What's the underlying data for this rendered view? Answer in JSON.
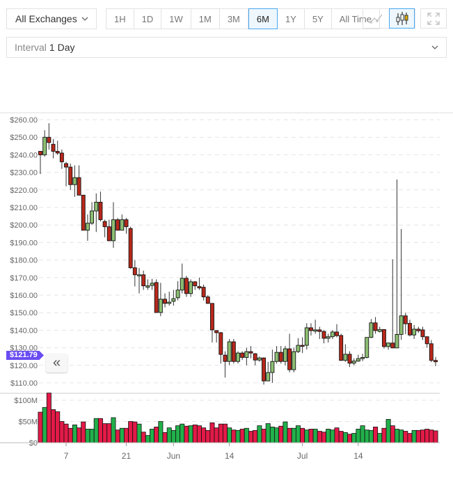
{
  "toolbar": {
    "exchange": "All Exchanges",
    "ranges": [
      "1H",
      "1D",
      "1W",
      "1M",
      "3M",
      "6M",
      "1Y",
      "5Y",
      "All Time"
    ],
    "active_range": "6M",
    "chart_types": [
      "line-chart-icon",
      "candlestick-icon"
    ],
    "active_chart_type": "candlestick-icon",
    "fullscreen": "expand-icon"
  },
  "interval": {
    "label": "Interval",
    "value": "1 Day"
  },
  "current_price": "$121.79",
  "collapse_icon": "double-chevron-left-icon",
  "colors": {
    "up": "#8dbf73",
    "down": "#b8281b",
    "vol_up": "#22b04b",
    "vol_down": "#e31a47",
    "badge": "#6a4cf2",
    "active": "#4aa8f0"
  },
  "chart_data": {
    "type": "candlestick",
    "price_ticks": [
      "$110.00",
      "$120.00",
      "$130.00",
      "$140.00",
      "$150.00",
      "$160.00",
      "$170.00",
      "$180.00",
      "$190.00",
      "$200.00",
      "$210.00",
      "$220.00",
      "$230.00",
      "$240.00",
      "$250.00",
      "$260.00"
    ],
    "price_range": [
      105,
      262
    ],
    "volume_ticks": [
      "$0",
      "$50M",
      "$100M"
    ],
    "volume_range_m": [
      0,
      117
    ],
    "x_ticks": [
      {
        "label": "7",
        "date": "May 7"
      },
      {
        "label": "21",
        "date": "May 21"
      },
      {
        "label": "Jun",
        "date": "Jun 1"
      },
      {
        "label": "14",
        "date": "Jun 14"
      },
      {
        "label": "Jul",
        "date": "Jul 1"
      },
      {
        "label": "14",
        "date": "Jul 14"
      }
    ],
    "grid": "horizontal dashed",
    "columns": [
      "date",
      "open",
      "high",
      "low",
      "close",
      "volume_m"
    ],
    "candles": [
      [
        "May 1",
        242,
        242,
        229,
        240,
        72
      ],
      [
        "May 2",
        240,
        254,
        239,
        250,
        83
      ],
      [
        "May 3",
        250,
        258,
        243,
        247,
        117
      ],
      [
        "May 4",
        246,
        249,
        238,
        242,
        78
      ],
      [
        "May 5",
        242,
        248,
        240,
        241,
        73
      ],
      [
        "May 6",
        241,
        243,
        232,
        236,
        50
      ],
      [
        "May 7",
        235,
        236,
        222,
        233,
        44
      ],
      [
        "May 8",
        233,
        235,
        220,
        223,
        34
      ],
      [
        "May 9",
        223,
        234,
        216,
        227,
        42
      ],
      [
        "May 10",
        227,
        234,
        217,
        217,
        35
      ],
      [
        "May 11",
        217,
        217,
        197,
        197,
        49
      ],
      [
        "May 12",
        197,
        206,
        191,
        201,
        32
      ],
      [
        "May 13",
        201,
        213,
        200,
        208,
        32
      ],
      [
        "May 14",
        208,
        218,
        196,
        213,
        57
      ],
      [
        "May 15",
        213,
        219,
        202,
        203,
        57
      ],
      [
        "May 16",
        202,
        203,
        193,
        199,
        45
      ],
      [
        "May 17",
        199,
        203,
        191,
        191,
        45
      ],
      [
        "May 18",
        191,
        213,
        187,
        203,
        59
      ],
      [
        "May 19",
        203,
        204,
        197,
        197,
        30
      ],
      [
        "May 20",
        197,
        206,
        197,
        203,
        34
      ],
      [
        "May 21",
        203,
        204,
        195,
        199,
        34
      ],
      [
        "May 22",
        198,
        199,
        175,
        175.6,
        50
      ],
      [
        "May 23",
        175.6,
        180,
        165,
        171.6,
        49
      ],
      [
        "May 24",
        171,
        175.5,
        161,
        171.6,
        44
      ],
      [
        "May 25",
        171.6,
        174,
        163,
        165.3,
        25
      ],
      [
        "May 26",
        164.5,
        169,
        163,
        165.3,
        17
      ],
      [
        "May 27",
        165.5,
        169.3,
        163,
        166.8,
        32
      ],
      [
        "May 28",
        167.2,
        169,
        150,
        150.1,
        37
      ],
      [
        "May 29",
        150.1,
        167,
        148,
        157.7,
        50
      ],
      [
        "May 30",
        157.7,
        161,
        153,
        155.3,
        24
      ],
      [
        "May 31",
        155.3,
        162,
        154,
        156,
        35
      ],
      [
        "Jun 1",
        156.5,
        163,
        154,
        158,
        29
      ],
      [
        "Jun 2",
        158.5,
        168,
        157,
        162.9,
        40
      ],
      [
        "Jun 3",
        162.9,
        178,
        161,
        169.6,
        44
      ],
      [
        "Jun 4",
        169.6,
        171,
        159,
        160.9,
        39
      ],
      [
        "Jun 5",
        160.9,
        169,
        159,
        167.6,
        40
      ],
      [
        "Jun 6",
        167.6,
        168,
        163,
        165.3,
        42
      ],
      [
        "Jun 7",
        164.9,
        170,
        163,
        164.1,
        40
      ],
      [
        "Jun 8",
        164.5,
        166,
        157,
        159,
        35
      ],
      [
        "Jun 9",
        159,
        160,
        155,
        155.3,
        29
      ],
      [
        "Jun 10",
        155.3,
        155.3,
        133,
        140.2,
        47
      ],
      [
        "Jun 11",
        139.8,
        140,
        133,
        138.6,
        35
      ],
      [
        "Jun 12",
        138.6,
        139,
        121,
        126.2,
        44
      ],
      [
        "Jun 13",
        125.8,
        128,
        113,
        122.2,
        44
      ],
      [
        "Jun 14",
        122.2,
        135,
        120,
        133.4,
        35
      ],
      [
        "Jun 15",
        133.4,
        135,
        121,
        122.2,
        30
      ],
      [
        "Jun 16",
        122.2,
        128,
        121,
        127,
        29
      ],
      [
        "Jun 17",
        127,
        128,
        123,
        124.5,
        32
      ],
      [
        "Jun 18",
        124.5,
        130,
        120,
        127.8,
        34
      ],
      [
        "Jun 19",
        127.8,
        131,
        124,
        127,
        27
      ],
      [
        "Jun 20",
        126.6,
        127,
        120,
        123,
        29
      ],
      [
        "Jun 21",
        123,
        125,
        122,
        124.2,
        40
      ],
      [
        "Jun 22",
        124.2,
        124.5,
        109,
        111.1,
        32
      ],
      [
        "Jun 23",
        111.1,
        122,
        111,
        115.9,
        45
      ],
      [
        "Jun 24",
        115.9,
        129,
        110,
        122.2,
        37
      ],
      [
        "Jun 25",
        122.2,
        131,
        121,
        127.4,
        35
      ],
      [
        "Jun 26",
        127.4,
        131,
        121,
        122.2,
        39
      ],
      [
        "Jun 27",
        122.2,
        131,
        120,
        129.4,
        49
      ],
      [
        "Jun 28",
        129.4,
        138,
        116,
        117.5,
        34
      ],
      [
        "Jun 29",
        117.5,
        130,
        116,
        127.8,
        34
      ],
      [
        "Jun 30",
        127.8,
        135.5,
        127,
        131.4,
        40
      ],
      [
        "Jul 1",
        131.4,
        136,
        127,
        130.8,
        34
      ],
      [
        "Jul 2",
        131.4,
        144,
        129,
        141.4,
        30
      ],
      [
        "Jul 3",
        141.4,
        144,
        137,
        139.8,
        32
      ],
      [
        "Jul 4",
        139.5,
        146,
        138,
        140.2,
        32
      ],
      [
        "Jul 5",
        140.2,
        142,
        135,
        139.3,
        27
      ],
      [
        "Jul 6",
        139.3,
        140,
        132.5,
        135.4,
        25
      ],
      [
        "Jul 7",
        135.4,
        138,
        133,
        136.3,
        32
      ],
      [
        "Jul 8",
        136.3,
        140,
        135,
        139,
        30
      ],
      [
        "Jul 9",
        139,
        143.5,
        136,
        136.9,
        35
      ],
      [
        "Jul 10",
        137,
        138,
        122.5,
        122.8,
        27
      ],
      [
        "Jul 11",
        122.8,
        132,
        122,
        126.3,
        24
      ],
      [
        "Jul 12",
        126.3,
        128,
        119,
        121.2,
        20
      ],
      [
        "Jul 13",
        121.2,
        124,
        120,
        122.4,
        22
      ],
      [
        "Jul 14",
        122.4,
        126,
        122,
        123.8,
        32
      ],
      [
        "Jul 15",
        123.8,
        126.6,
        122.4,
        124.5,
        40
      ],
      [
        "Jul 16",
        124.5,
        136,
        124,
        135.9,
        30
      ],
      [
        "Jul 17",
        135.9,
        146.4,
        135.5,
        144.2,
        29
      ],
      [
        "Jul 18",
        144.2,
        147.5,
        138,
        139.8,
        37
      ],
      [
        "Jul 19",
        139.3,
        142,
        138.7,
        140.4,
        22
      ],
      [
        "Jul 20",
        140.4,
        140.4,
        129.6,
        130.7,
        34
      ],
      [
        "Jul 21",
        130.7,
        133,
        128.9,
        132.7,
        55
      ],
      [
        "Jul 22",
        132.7,
        180.4,
        129.9,
        129.9,
        40
      ],
      [
        "Jul 23",
        129.9,
        225.9,
        129.9,
        137.6,
        32
      ],
      [
        "Jul 24",
        137.6,
        197.7,
        134.5,
        148.2,
        30
      ],
      [
        "Jul 25",
        148.2,
        150,
        137.8,
        143.7,
        27
      ],
      [
        "Jul 26",
        143.9,
        146,
        136.5,
        137.3,
        22
      ],
      [
        "Jul 27",
        137.3,
        143,
        135,
        140.6,
        29
      ],
      [
        "Jul 28",
        140.6,
        142,
        138.5,
        139.7,
        29
      ],
      [
        "Jul 29",
        140.2,
        142,
        134.4,
        136.3,
        30
      ],
      [
        "Jul 30",
        136.3,
        136.5,
        130,
        132.3,
        32
      ],
      [
        "Jul 31",
        132.3,
        134.4,
        121.8,
        122.8,
        30
      ],
      [
        "Aug 1",
        122.8,
        124.8,
        119.5,
        122,
        28
      ]
    ]
  }
}
